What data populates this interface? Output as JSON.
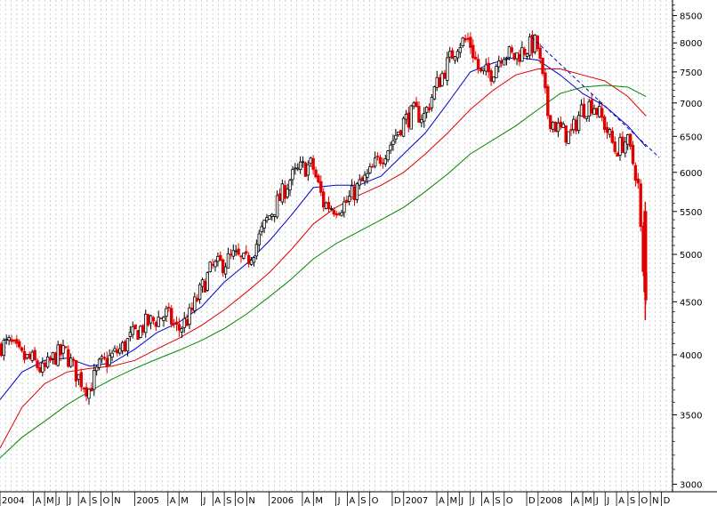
{
  "chart_data": {
    "type": "candlestick",
    "title": "",
    "xlabel": "",
    "ylabel": "",
    "y_scale": "log",
    "ylim": [
      2950,
      8800
    ],
    "xlim": [
      "2004-01-01",
      "2008-12-31"
    ],
    "grid": {
      "vertical": true,
      "horizontal": false,
      "style": "dashed"
    },
    "legend": "none",
    "colors": {
      "up_candle": "#000000",
      "down_candle": "#e00000",
      "ma_short": "#0000cc",
      "ma_mid": "#dd0000",
      "ma_long": "#008800",
      "trend_line": "#0000cc",
      "grid": "#bbbbbb"
    },
    "y_ticks": [
      3000,
      3500,
      4000,
      4500,
      5000,
      5500,
      6000,
      6500,
      7000,
      7500,
      8000,
      8500
    ],
    "y_tick_labels": [
      "3000",
      "3500",
      "4000",
      "4500",
      "5000",
      "5500",
      "6000",
      "6500",
      "7000",
      "7500",
      "8000",
      "8500"
    ],
    "x_ticks": [
      {
        "date": "2004-01-01",
        "label": "2004"
      },
      {
        "date": "2004-04-01",
        "label": "A"
      },
      {
        "date": "2004-05-01",
        "label": "M"
      },
      {
        "date": "2004-06-01",
        "label": "J"
      },
      {
        "date": "2004-07-01",
        "label": "J"
      },
      {
        "date": "2004-08-01",
        "label": "A"
      },
      {
        "date": "2004-09-01",
        "label": "S"
      },
      {
        "date": "2004-10-01",
        "label": "O"
      },
      {
        "date": "2004-11-01",
        "label": "N"
      },
      {
        "date": "2005-01-01",
        "label": "2005"
      },
      {
        "date": "2005-04-01",
        "label": "A"
      },
      {
        "date": "2005-05-01",
        "label": "M"
      },
      {
        "date": "2005-07-01",
        "label": "J"
      },
      {
        "date": "2005-08-01",
        "label": "A"
      },
      {
        "date": "2005-09-01",
        "label": "S"
      },
      {
        "date": "2005-10-01",
        "label": "O"
      },
      {
        "date": "2005-11-01",
        "label": "N"
      },
      {
        "date": "2006-01-01",
        "label": "2006"
      },
      {
        "date": "2006-04-01",
        "label": "A"
      },
      {
        "date": "2006-05-01",
        "label": "M"
      },
      {
        "date": "2006-07-01",
        "label": "J"
      },
      {
        "date": "2006-08-01",
        "label": "A"
      },
      {
        "date": "2006-09-01",
        "label": "S"
      },
      {
        "date": "2006-10-01",
        "label": "O"
      },
      {
        "date": "2006-12-01",
        "label": "D"
      },
      {
        "date": "2007-01-01",
        "label": "2007"
      },
      {
        "date": "2007-04-01",
        "label": "A"
      },
      {
        "date": "2007-05-01",
        "label": "M"
      },
      {
        "date": "2007-06-01",
        "label": "J"
      },
      {
        "date": "2007-07-01",
        "label": "J"
      },
      {
        "date": "2007-08-01",
        "label": "A"
      },
      {
        "date": "2007-09-01",
        "label": "S"
      },
      {
        "date": "2007-10-01",
        "label": "O"
      },
      {
        "date": "2007-12-01",
        "label": "D"
      },
      {
        "date": "2008-01-01",
        "label": "2008"
      },
      {
        "date": "2008-04-01",
        "label": "A"
      },
      {
        "date": "2008-05-01",
        "label": "M"
      },
      {
        "date": "2008-06-01",
        "label": "J"
      },
      {
        "date": "2008-07-01",
        "label": "J"
      },
      {
        "date": "2008-08-01",
        "label": "A"
      },
      {
        "date": "2008-09-01",
        "label": "S"
      },
      {
        "date": "2008-10-01",
        "label": "O"
      },
      {
        "date": "2008-11-01",
        "label": "N"
      },
      {
        "date": "2008-12-01",
        "label": "D"
      }
    ],
    "price_series": {
      "name": "",
      "points": [
        [
          "2004-01-01",
          4080
        ],
        [
          "2004-02-01",
          4100
        ],
        [
          "2004-03-01",
          3980
        ],
        [
          "2004-04-01",
          3950
        ],
        [
          "2004-05-01",
          3850
        ],
        [
          "2004-06-01",
          3990
        ],
        [
          "2004-07-01",
          4020
        ],
        [
          "2004-08-01",
          3820
        ],
        [
          "2004-09-01",
          3700
        ],
        [
          "2004-10-01",
          3900
        ],
        [
          "2004-11-01",
          3980
        ],
        [
          "2004-12-01",
          4060
        ],
        [
          "2005-01-01",
          4180
        ],
        [
          "2005-02-01",
          4280
        ],
        [
          "2005-03-01",
          4320
        ],
        [
          "2005-04-01",
          4380
        ],
        [
          "2005-05-01",
          4220
        ],
        [
          "2005-06-01",
          4350
        ],
        [
          "2005-07-01",
          4600
        ],
        [
          "2005-08-01",
          4850
        ],
        [
          "2005-09-01",
          4900
        ],
        [
          "2005-10-01",
          4980
        ],
        [
          "2005-11-01",
          4900
        ],
        [
          "2005-12-01",
          5120
        ],
        [
          "2006-01-01",
          5420
        ],
        [
          "2006-02-01",
          5650
        ],
        [
          "2006-03-01",
          5900
        ],
        [
          "2006-04-01",
          6050
        ],
        [
          "2006-05-01",
          6100
        ],
        [
          "2006-06-01",
          5600
        ],
        [
          "2006-07-01",
          5550
        ],
        [
          "2006-08-01",
          5600
        ],
        [
          "2006-09-01",
          5800
        ],
        [
          "2006-10-01",
          5950
        ],
        [
          "2006-11-01",
          6200
        ],
        [
          "2006-12-01",
          6400
        ],
        [
          "2007-01-01",
          6700
        ],
        [
          "2007-02-01",
          6850
        ],
        [
          "2007-03-01",
          6800
        ],
        [
          "2007-04-01",
          7250
        ],
        [
          "2007-05-01",
          7600
        ],
        [
          "2007-06-01",
          8000
        ],
        [
          "2007-07-01",
          8050
        ],
        [
          "2007-08-01",
          7450
        ],
        [
          "2007-09-01",
          7500
        ],
        [
          "2007-10-01",
          7850
        ],
        [
          "2007-11-01",
          7750
        ],
        [
          "2007-12-01",
          7900
        ],
        [
          "2008-01-01",
          8000
        ],
        [
          "2008-02-01",
          6800
        ],
        [
          "2008-03-01",
          6600
        ],
        [
          "2008-04-01",
          6500
        ],
        [
          "2008-05-01",
          6900
        ],
        [
          "2008-06-01",
          7000
        ],
        [
          "2008-07-01",
          6700
        ],
        [
          "2008-08-01",
          6300
        ],
        [
          "2008-09-01",
          6450
        ],
        [
          "2008-10-01",
          5900
        ],
        [
          "2008-10-20",
          4500
        ]
      ]
    },
    "moving_averages": [
      {
        "name": "",
        "color": "#0000cc",
        "points": [
          [
            "2004-01-01",
            3620
          ],
          [
            "2004-03-01",
            3850
          ],
          [
            "2004-05-01",
            3950
          ],
          [
            "2004-07-01",
            3970
          ],
          [
            "2004-09-01",
            3900
          ],
          [
            "2004-11-01",
            3930
          ],
          [
            "2005-01-01",
            4050
          ],
          [
            "2005-03-01",
            4200
          ],
          [
            "2005-05-01",
            4300
          ],
          [
            "2005-07-01",
            4450
          ],
          [
            "2005-09-01",
            4700
          ],
          [
            "2005-11-01",
            4900
          ],
          [
            "2006-01-01",
            5150
          ],
          [
            "2006-03-01",
            5450
          ],
          [
            "2006-05-01",
            5800
          ],
          [
            "2006-07-01",
            5830
          ],
          [
            "2006-09-01",
            5830
          ],
          [
            "2006-11-01",
            5950
          ],
          [
            "2007-01-01",
            6250
          ],
          [
            "2007-03-01",
            6550
          ],
          [
            "2007-05-01",
            7000
          ],
          [
            "2007-07-01",
            7500
          ],
          [
            "2007-09-01",
            7650
          ],
          [
            "2007-11-01",
            7750
          ],
          [
            "2008-01-01",
            7700
          ],
          [
            "2008-03-01",
            7450
          ],
          [
            "2008-05-01",
            7150
          ],
          [
            "2008-07-01",
            6950
          ],
          [
            "2008-09-01",
            6650
          ],
          [
            "2008-10-20",
            6350
          ]
        ]
      },
      {
        "name": "",
        "color": "#dd0000",
        "points": [
          [
            "2004-01-01",
            3250
          ],
          [
            "2004-03-01",
            3560
          ],
          [
            "2004-05-01",
            3750
          ],
          [
            "2004-07-01",
            3850
          ],
          [
            "2004-09-01",
            3880
          ],
          [
            "2004-11-01",
            3900
          ],
          [
            "2005-01-01",
            3950
          ],
          [
            "2005-03-01",
            4050
          ],
          [
            "2005-05-01",
            4150
          ],
          [
            "2005-07-01",
            4270
          ],
          [
            "2005-09-01",
            4420
          ],
          [
            "2005-11-01",
            4600
          ],
          [
            "2006-01-01",
            4800
          ],
          [
            "2006-03-01",
            5050
          ],
          [
            "2006-05-01",
            5350
          ],
          [
            "2006-07-01",
            5550
          ],
          [
            "2006-09-01",
            5700
          ],
          [
            "2006-11-01",
            5830
          ],
          [
            "2007-01-01",
            6000
          ],
          [
            "2007-03-01",
            6250
          ],
          [
            "2007-05-01",
            6550
          ],
          [
            "2007-07-01",
            6900
          ],
          [
            "2007-09-01",
            7200
          ],
          [
            "2007-11-01",
            7450
          ],
          [
            "2008-01-01",
            7550
          ],
          [
            "2008-03-01",
            7550
          ],
          [
            "2008-05-01",
            7450
          ],
          [
            "2008-07-01",
            7350
          ],
          [
            "2008-09-01",
            7100
          ],
          [
            "2008-10-20",
            6800
          ]
        ]
      },
      {
        "name": "",
        "color": "#008800",
        "points": [
          [
            "2004-01-01",
            3180
          ],
          [
            "2004-03-01",
            3330
          ],
          [
            "2004-05-01",
            3450
          ],
          [
            "2004-07-01",
            3580
          ],
          [
            "2004-09-01",
            3690
          ],
          [
            "2004-11-01",
            3790
          ],
          [
            "2005-01-01",
            3880
          ],
          [
            "2005-03-01",
            3960
          ],
          [
            "2005-05-01",
            4040
          ],
          [
            "2005-07-01",
            4130
          ],
          [
            "2005-09-01",
            4240
          ],
          [
            "2005-11-01",
            4380
          ],
          [
            "2006-01-01",
            4550
          ],
          [
            "2006-03-01",
            4730
          ],
          [
            "2006-05-01",
            4950
          ],
          [
            "2006-07-01",
            5120
          ],
          [
            "2006-09-01",
            5260
          ],
          [
            "2006-11-01",
            5400
          ],
          [
            "2007-01-01",
            5550
          ],
          [
            "2007-03-01",
            5750
          ],
          [
            "2007-05-01",
            5980
          ],
          [
            "2007-07-01",
            6250
          ],
          [
            "2007-09-01",
            6450
          ],
          [
            "2007-11-01",
            6650
          ],
          [
            "2008-01-01",
            6900
          ],
          [
            "2008-03-01",
            7150
          ],
          [
            "2008-05-01",
            7250
          ],
          [
            "2008-07-01",
            7280
          ],
          [
            "2008-09-01",
            7250
          ],
          [
            "2008-10-20",
            7100
          ]
        ]
      }
    ],
    "trend_line": {
      "style": "dashed",
      "color": "#0000cc",
      "points": [
        [
          "2007-12-15",
          8100
        ],
        [
          "2008-11-25",
          6200
        ]
      ]
    }
  }
}
